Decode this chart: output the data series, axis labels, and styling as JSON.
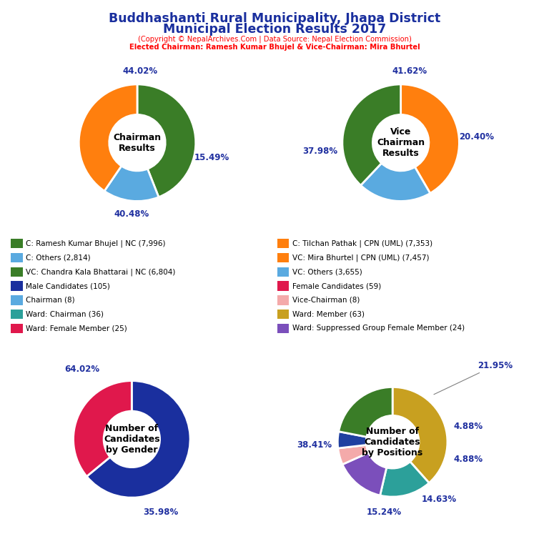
{
  "title_line1": "Buddhashanti Rural Municipality, Jhapa District",
  "title_line2": "Municipal Election Results 2017",
  "subtitle1": "(Copyright © NepalArchives.Com | Data Source: Nepal Election Commission)",
  "subtitle2": "Elected Chairman: Ramesh Kumar Bhujel & Vice-Chairman: Mira Bhurtel",
  "chart1_values": [
    44.02,
    15.49,
    40.48
  ],
  "chart1_colors": [
    "#3A7D27",
    "#5AAAE0",
    "#FF7F0E"
  ],
  "chart1_pcts": [
    "44.02%",
    "15.49%",
    "40.48%"
  ],
  "chart1_center": "Chairman\nResults",
  "chart2_values": [
    41.62,
    20.4,
    37.98
  ],
  "chart2_colors": [
    "#FF7F0E",
    "#5AAAE0",
    "#3A7D27"
  ],
  "chart2_pcts": [
    "41.62%",
    "20.40%",
    "37.98%"
  ],
  "chart2_center": "Vice\nChairman\nResults",
  "chart3_values": [
    64.02,
    35.98
  ],
  "chart3_colors": [
    "#1A2F9E",
    "#E0184C"
  ],
  "chart3_pcts": [
    "64.02%",
    "35.98%"
  ],
  "chart3_center": "Number of\nCandidates\nby Gender",
  "chart4_values": [
    38.41,
    15.24,
    14.63,
    4.88,
    4.88,
    21.95
  ],
  "chart4_colors": [
    "#C8A020",
    "#2CA09A",
    "#7B4FBB",
    "#F4AAAA",
    "#2040A0",
    "#3A7D27"
  ],
  "chart4_pcts": [
    "38.41%",
    "15.24%",
    "14.63%",
    "4.88%",
    "4.88%",
    "21.95%"
  ],
  "chart4_center": "Number of\nCandidates\nby Positions",
  "legend_items_left": [
    [
      "#3A7D27",
      "C: Ramesh Kumar Bhujel | NC (7,996)"
    ],
    [
      "#5AAAE0",
      "C: Others (2,814)"
    ],
    [
      "#3A7D27",
      "VC: Chandra Kala Bhattarai | NC (6,804)"
    ],
    [
      "#1A2F9E",
      "Male Candidates (105)"
    ],
    [
      "#5AAAE0",
      "Chairman (8)"
    ],
    [
      "#2CA09A",
      "Ward: Chairman (36)"
    ],
    [
      "#E0184C",
      "Ward: Female Member (25)"
    ]
  ],
  "legend_items_right": [
    [
      "#FF7F0E",
      "C: Tilchan Pathak | CPN (UML) (7,353)"
    ],
    [
      "#FF7F0E",
      "VC: Mira Bhurtel | CPN (UML) (7,457)"
    ],
    [
      "#5AAAE0",
      "VC: Others (3,655)"
    ],
    [
      "#E0184C",
      "Female Candidates (59)"
    ],
    [
      "#F4AAAA",
      "Vice-Chairman (8)"
    ],
    [
      "#C8A020",
      "Ward: Member (63)"
    ],
    [
      "#7B4FBB",
      "Ward: Suppressed Group Female Member (24)"
    ]
  ]
}
